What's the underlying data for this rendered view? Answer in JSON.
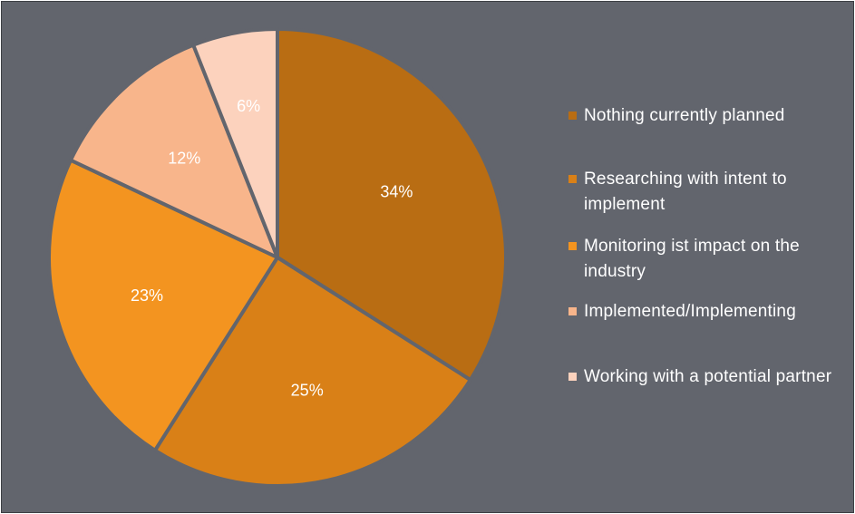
{
  "chart_data": {
    "type": "pie",
    "title": "",
    "slices": [
      {
        "label": "Nothing currently planned",
        "value": 34,
        "display": "34%",
        "color": "#b96d13"
      },
      {
        "label": "Researching with intent to implement",
        "value": 25,
        "display": "25%",
        "color": "#d98017"
      },
      {
        "label": "Monitoring ist impact on the industry",
        "value": 23,
        "display": "23%",
        "color": "#f39420"
      },
      {
        "label": "Implemented/Implementing",
        "value": 12,
        "display": "12%",
        "color": "#f8b58b"
      },
      {
        "label": "Working with a potential partner",
        "value": 6,
        "display": "6%",
        "color": "#fcd2bd"
      }
    ],
    "legend_position": "right",
    "separator_color": "#62656d"
  }
}
